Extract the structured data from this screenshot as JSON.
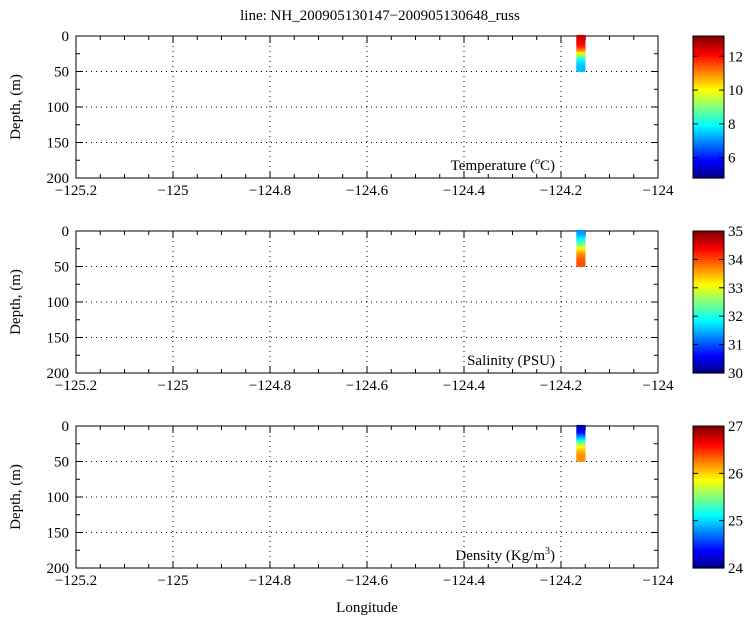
{
  "title": "line: NH_200905130147−200905130648_russ",
  "xlabel": "Longitude",
  "chart_data": [
    {
      "type": "scatter",
      "panel_label": "Temperature",
      "unit_prefix": "(",
      "unit_base": "o",
      "unit_suffix": "C)",
      "ylabel": "Depth, (m)",
      "xlim": [
        -125.2,
        -124
      ],
      "ylim": [
        0,
        200
      ],
      "y_inverted": true,
      "grid": true,
      "x_ticks": [
        "−125.2",
        "−125",
        "−124.8",
        "−124.6",
        "−124.4",
        "−124.2",
        "−124"
      ],
      "y_ticks": [
        "0",
        "50",
        "100",
        "150",
        "200"
      ],
      "colorbar": {
        "range": [
          4.8,
          13.2
        ],
        "ticks": [
          "6",
          "8",
          "10",
          "12"
        ],
        "colormap": "jet"
      },
      "series": [
        {
          "x": -124.16,
          "depths": [
            2,
            5,
            8,
            11,
            14,
            17,
            20,
            23,
            26,
            29,
            32,
            35,
            38,
            41,
            44,
            47
          ],
          "values": [
            12.6,
            12.5,
            12.4,
            12.3,
            12.1,
            11.8,
            11.4,
            10.9,
            10.2,
            9.4,
            8.7,
            8.1,
            7.8,
            7.6,
            7.5,
            7.4
          ]
        }
      ]
    },
    {
      "type": "scatter",
      "panel_label": "Salinity (PSU)",
      "ylabel": "Depth, (m)",
      "xlim": [
        -125.2,
        -124
      ],
      "ylim": [
        0,
        200
      ],
      "y_inverted": true,
      "grid": true,
      "x_ticks": [
        "−125.2",
        "−125",
        "−124.8",
        "−124.6",
        "−124.4",
        "−124.2",
        "−124"
      ],
      "y_ticks": [
        "0",
        "50",
        "100",
        "150",
        "200"
      ],
      "colorbar": {
        "range": [
          30,
          35
        ],
        "ticks": [
          "30",
          "31",
          "32",
          "33",
          "34",
          "35"
        ],
        "colormap": "jet"
      },
      "series": [
        {
          "x": -124.16,
          "depths": [
            2,
            5,
            8,
            11,
            14,
            17,
            20,
            23,
            26,
            29,
            32,
            35,
            38,
            41,
            44,
            47
          ],
          "values": [
            31.3,
            31.4,
            31.5,
            31.7,
            31.9,
            32.1,
            32.4,
            32.7,
            33.0,
            33.3,
            33.5,
            33.7,
            33.8,
            33.9,
            33.95,
            34.0
          ]
        }
      ]
    },
    {
      "type": "scatter",
      "panel_label": "Density",
      "unit_prefix": "(Kg/m",
      "unit_base": "3",
      "unit_suffix": ")",
      "ylabel": "Depth, (m)",
      "xlim": [
        -125.2,
        -124
      ],
      "ylim": [
        0,
        200
      ],
      "y_inverted": true,
      "grid": true,
      "x_ticks": [
        "−125.2",
        "−125",
        "−124.8",
        "−124.6",
        "−124.4",
        "−124.2",
        "−124"
      ],
      "y_ticks": [
        "0",
        "50",
        "100",
        "150",
        "200"
      ],
      "colorbar": {
        "range": [
          24,
          27
        ],
        "ticks": [
          "24",
          "25",
          "26",
          "27"
        ],
        "colormap": "jet"
      },
      "series": [
        {
          "x": -124.16,
          "depths": [
            2,
            5,
            8,
            11,
            14,
            17,
            20,
            23,
            26,
            29,
            32,
            35,
            38,
            41,
            44,
            47
          ],
          "values": [
            24.1,
            24.2,
            24.3,
            24.4,
            24.6,
            24.8,
            25.0,
            25.2,
            25.5,
            25.7,
            25.9,
            26.0,
            26.1,
            26.15,
            26.2,
            26.2
          ]
        }
      ]
    }
  ]
}
